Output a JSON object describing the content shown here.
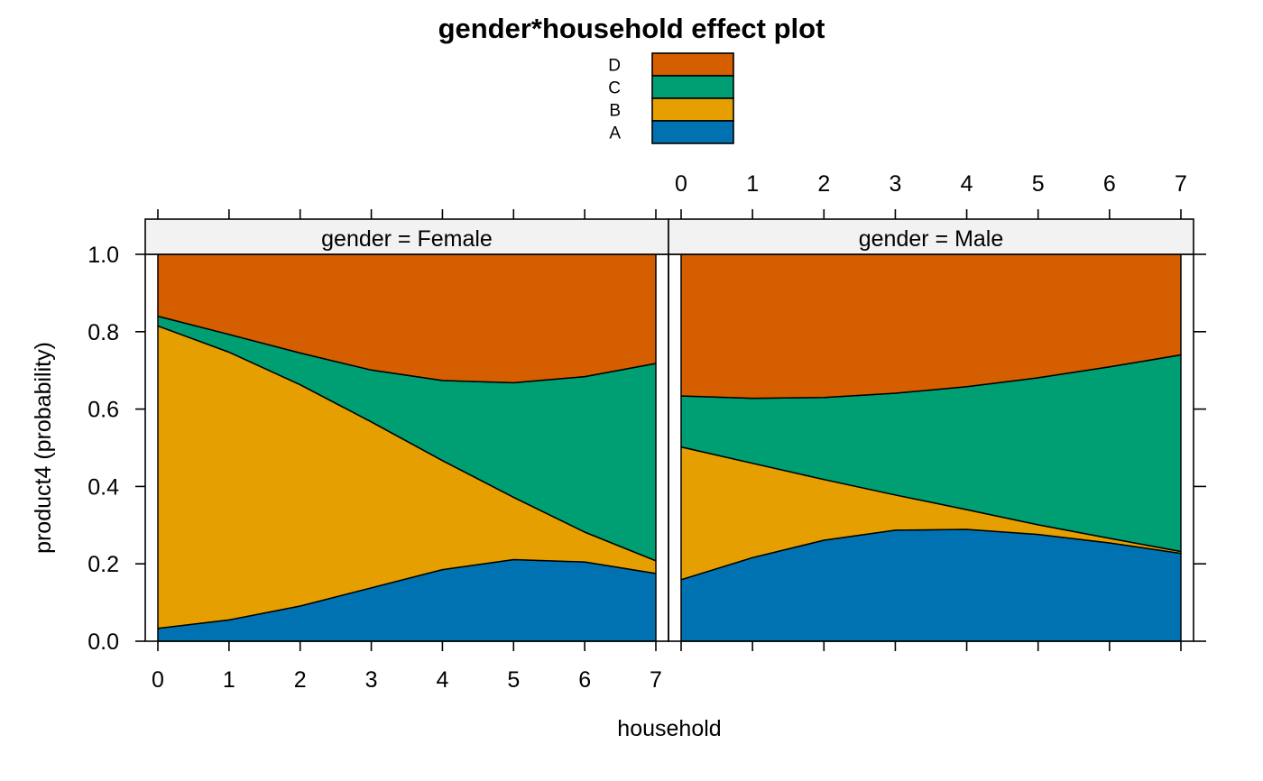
{
  "chart_data": {
    "type": "area",
    "subtype": "stacked-probability",
    "title": "gender*household effect plot",
    "xlabel": "household",
    "ylabel": "product4 (probability)",
    "x": [
      0,
      1,
      2,
      3,
      4,
      5,
      6,
      7
    ],
    "xlim": [
      0,
      7
    ],
    "ylim": [
      0,
      1
    ],
    "x_ticks": [
      "0",
      "1",
      "2",
      "3",
      "4",
      "5",
      "6",
      "7"
    ],
    "y_ticks": [
      "0.0",
      "0.2",
      "0.4",
      "0.6",
      "0.8",
      "1.0"
    ],
    "grid": false,
    "legend": {
      "placement": "top",
      "entries": [
        {
          "label": "D",
          "color": "#D55E00"
        },
        {
          "label": "C",
          "color": "#009E73"
        },
        {
          "label": "B",
          "color": "#E69F00"
        },
        {
          "label": "A",
          "color": "#0072B2"
        }
      ]
    },
    "panels": [
      {
        "strip": "gender = Female",
        "cumulative": {
          "A": [
            0.033,
            0.055,
            0.091,
            0.138,
            0.185,
            0.211,
            0.205,
            0.175
          ],
          "B": [
            0.815,
            0.747,
            0.663,
            0.567,
            0.467,
            0.372,
            0.282,
            0.208
          ],
          "C": [
            0.84,
            0.793,
            0.745,
            0.701,
            0.674,
            0.668,
            0.684,
            0.718
          ],
          "D": [
            1,
            1,
            1,
            1,
            1,
            1,
            1,
            1
          ]
        }
      },
      {
        "strip": "gender = Male",
        "cumulative": {
          "A": [
            0.159,
            0.216,
            0.261,
            0.287,
            0.289,
            0.276,
            0.254,
            0.227
          ],
          "B": [
            0.502,
            0.46,
            0.418,
            0.378,
            0.34,
            0.301,
            0.266,
            0.232
          ],
          "C": [
            0.634,
            0.628,
            0.63,
            0.641,
            0.658,
            0.681,
            0.709,
            0.74
          ],
          "D": [
            1,
            1,
            1,
            1,
            1,
            1,
            1,
            1
          ]
        }
      }
    ]
  }
}
